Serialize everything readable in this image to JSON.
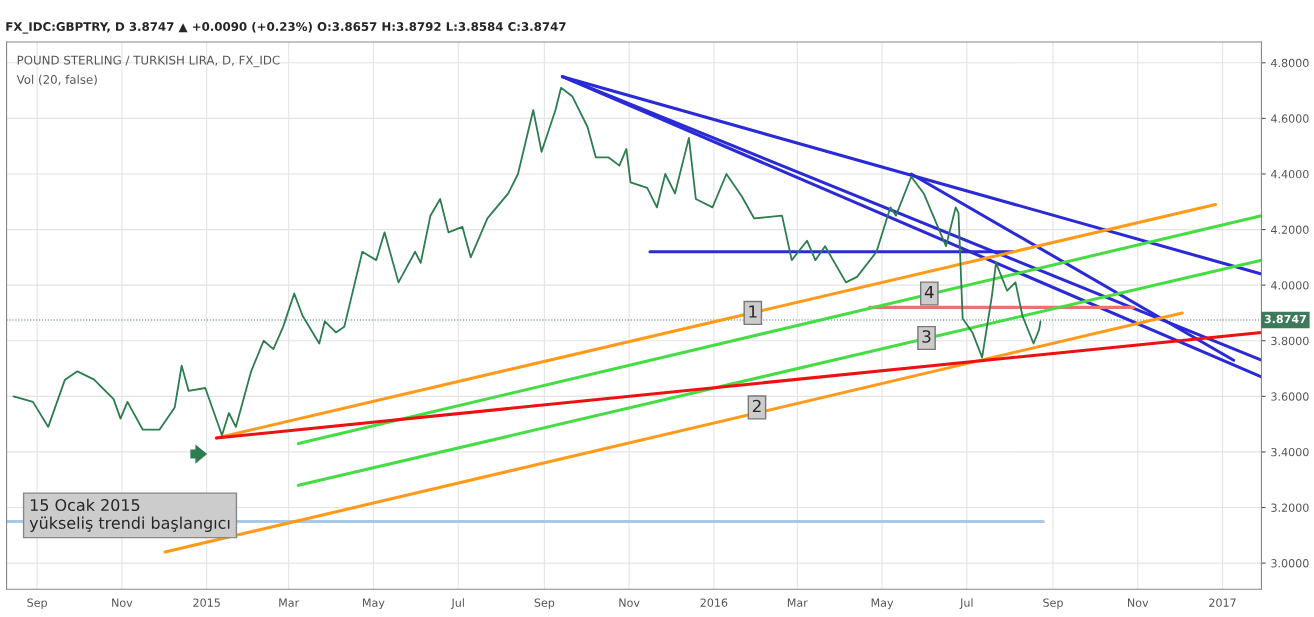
{
  "chart_data": {
    "type": "line",
    "title": "FX_IDC:GBPTRY, D 3.8747 ▲ +0.0090 (+0.23%) O:3.8657 H:3.8792 L:3.8584 C:3.8747",
    "subtitle": "POUND STERLING / TURKISH LIRA, D, FX_IDC",
    "annotations": [
      "Vol (20, false)",
      "15 Ocak 2015\nyükseliş trendi başlangıcı",
      {
        "text": "1",
        "x": "2016-01-29",
        "y": 3.9
      },
      {
        "text": "2",
        "x": "2016-02-01",
        "y": 3.56
      },
      {
        "text": "3",
        "x": "2016-06-02",
        "y": 3.81
      },
      {
        "text": "4",
        "x": "2016-06-04",
        "y": 3.97
      }
    ],
    "series": [
      {
        "color": "#2e7d4f",
        "x": [
          "2014-08-15",
          "2014-08-29",
          "2014-09-09",
          "2014-09-21",
          "2014-09-30",
          "2014-10-12",
          "2014-10-26",
          "2014-10-31",
          "2014-11-05",
          "2014-11-16",
          "2014-11-28",
          "2014-12-09",
          "2014-12-14",
          "2014-12-19",
          "2014-12-31",
          "2015-01-12",
          "2015-01-17",
          "2015-01-22",
          "2015-02-02",
          "2015-02-11",
          "2015-02-18",
          "2015-02-25",
          "2015-03-05",
          "2015-03-11",
          "2015-03-23",
          "2015-03-27",
          "2015-04-04",
          "2015-04-10",
          "2015-04-23",
          "2015-05-03",
          "2015-05-09",
          "2015-05-19",
          "2015-05-31",
          "2015-06-04",
          "2015-06-11",
          "2015-06-18",
          "2015-06-24",
          "2015-07-04",
          "2015-07-10",
          "2015-07-22",
          "2015-08-06",
          "2015-08-13",
          "2015-08-24",
          "2015-08-30",
          "2015-09-09",
          "2015-09-13",
          "2015-09-21",
          "2015-10-02",
          "2015-10-08",
          "2015-10-17",
          "2015-10-25",
          "2015-10-30",
          "2015-11-02",
          "2015-11-14",
          "2015-11-21",
          "2015-11-27",
          "2015-12-04",
          "2015-12-14",
          "2015-12-19",
          "2015-12-31",
          "2016-01-10",
          "2016-01-21",
          "2016-01-30",
          "2016-02-19",
          "2016-02-26",
          "2016-03-08",
          "2016-03-14",
          "2016-03-21",
          "2016-04-05",
          "2016-04-13",
          "2016-04-27",
          "2016-05-07",
          "2016-05-11",
          "2016-05-22",
          "2016-05-31",
          "2016-06-11",
          "2016-06-16",
          "2016-06-23",
          "2016-06-25",
          "2016-06-28",
          "2016-07-05",
          "2016-07-12",
          "2016-07-19",
          "2016-07-22",
          "2016-07-30",
          "2016-08-05",
          "2016-08-10",
          "2016-08-18",
          "2016-08-22",
          "2016-08-23"
        ],
        "values": [
          3.6,
          3.58,
          3.49,
          3.66,
          3.69,
          3.66,
          3.59,
          3.52,
          3.58,
          3.48,
          3.48,
          3.56,
          3.71,
          3.62,
          3.63,
          3.46,
          3.54,
          3.49,
          3.69,
          3.8,
          3.77,
          3.85,
          3.97,
          3.89,
          3.79,
          3.87,
          3.83,
          3.85,
          4.12,
          4.09,
          4.19,
          4.01,
          4.12,
          4.08,
          4.25,
          4.31,
          4.19,
          4.21,
          4.1,
          4.24,
          4.33,
          4.4,
          4.63,
          4.48,
          4.63,
          4.71,
          4.68,
          4.57,
          4.46,
          4.46,
          4.43,
          4.49,
          4.37,
          4.35,
          4.28,
          4.4,
          4.33,
          4.53,
          4.31,
          4.28,
          4.4,
          4.32,
          4.24,
          4.25,
          4.09,
          4.16,
          4.09,
          4.14,
          4.01,
          4.03,
          4.12,
          4.28,
          4.25,
          4.39,
          4.33,
          4.2,
          4.14,
          4.28,
          4.26,
          3.88,
          3.83,
          3.74,
          3.96,
          4.08,
          3.98,
          4.01,
          3.89,
          3.79,
          3.84,
          3.87
        ]
      },
      {
        "color": "#2a2ad6",
        "x": [
          "2015-09-14",
          "2017-01-29"
        ],
        "values": [
          4.75,
          4.04
        ]
      },
      {
        "color": "#2a2ad6",
        "x": [
          "2015-09-14",
          "2017-01-29"
        ],
        "values": [
          4.75,
          3.73
        ]
      },
      {
        "color": "#2a2ad6",
        "x": [
          "2015-09-14",
          "2017-01-29"
        ],
        "values": [
          4.75,
          3.67
        ]
      },
      {
        "color": "#2a2ad6",
        "x": [
          "2016-05-22",
          "2017-01-09"
        ],
        "values": [
          4.4,
          3.73
        ]
      },
      {
        "color": "#2a2ad6",
        "x": [
          "2015-11-16",
          "2016-08-03"
        ],
        "values": [
          4.12,
          4.12
        ]
      },
      {
        "color": "#f07070",
        "x": [
          "2016-04-22",
          "2016-10-29"
        ],
        "values": [
          3.92,
          3.92
        ]
      },
      {
        "color": "#a8c8e8",
        "x": [
          "2014-08-10",
          "2016-08-25"
        ],
        "values": [
          3.15,
          3.15
        ]
      },
      {
        "color": "#44dd44",
        "x": [
          "2015-03-08",
          "2017-01-29"
        ],
        "values": [
          3.43,
          4.25
        ]
      },
      {
        "color": "#44dd44",
        "x": [
          "2015-03-08",
          "2017-01-29"
        ],
        "values": [
          3.28,
          4.09
        ]
      },
      {
        "color": "#ff9a1a",
        "x": [
          "2015-01-08",
          "2016-12-27"
        ],
        "values": [
          3.45,
          4.29
        ]
      },
      {
        "color": "#ff9a1a",
        "x": [
          "2014-12-02",
          "2016-12-03"
        ],
        "values": [
          3.04,
          3.9
        ]
      },
      {
        "color": "#ee1111",
        "x": [
          "2015-01-08",
          "2017-01-29"
        ],
        "values": [
          3.45,
          3.83
        ]
      }
    ],
    "ref_lines": [
      {
        "axis": "y",
        "value": 3.8747,
        "label": "3.8747",
        "color": "#3c7a5a",
        "line_style": "dotted"
      }
    ],
    "xlim": [
      "2014-08-10",
      "2017-01-29"
    ],
    "xticks": [
      {
        "value": "2014-09-01",
        "label": "Sep"
      },
      {
        "value": "2014-11-01",
        "label": "Nov"
      },
      {
        "value": "2015-01-01",
        "label": "2015"
      },
      {
        "value": "2015-03-01",
        "label": "Mar"
      },
      {
        "value": "2015-05-01",
        "label": "May"
      },
      {
        "value": "2015-07-01",
        "label": "Jul"
      },
      {
        "value": "2015-09-01",
        "label": "Sep"
      },
      {
        "value": "2015-11-01",
        "label": "Nov"
      },
      {
        "value": "2016-01-01",
        "label": "2016"
      },
      {
        "value": "2016-03-01",
        "label": "Mar"
      },
      {
        "value": "2016-05-01",
        "label": "May"
      },
      {
        "value": "2016-07-01",
        "label": "Jul"
      },
      {
        "value": "2016-09-01",
        "label": "Sep"
      },
      {
        "value": "2016-11-01",
        "label": "Nov"
      },
      {
        "value": "2017-01-01",
        "label": "2017"
      }
    ],
    "ylim": [
      2.906,
      4.875
    ],
    "yticks": [
      {
        "value": 3.0,
        "label": "3.0000"
      },
      {
        "value": 3.2,
        "label": "3.2000"
      },
      {
        "value": 3.4,
        "label": "3.4000"
      },
      {
        "value": 3.6,
        "label": "3.6000"
      },
      {
        "value": 3.8,
        "label": "3.8000"
      },
      {
        "value": 4.0,
        "label": "4.0000"
      },
      {
        "value": 4.2,
        "label": "4.2000"
      },
      {
        "value": 4.4,
        "label": "4.4000"
      },
      {
        "value": 4.6,
        "label": "4.6000"
      },
      {
        "value": 4.8,
        "label": "4.8000"
      }
    ],
    "grid": true,
    "legend": false,
    "marker": "none",
    "line_style": "solid"
  }
}
